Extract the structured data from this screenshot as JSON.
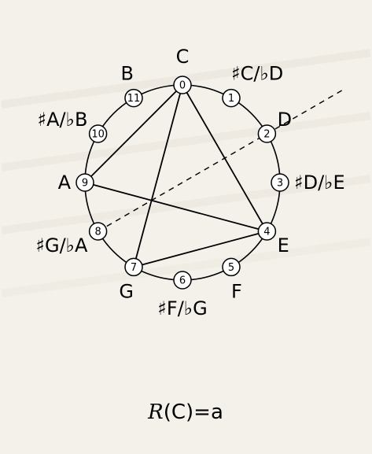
{
  "diagram": {
    "nodes": [
      {
        "index": "0",
        "label": "C"
      },
      {
        "index": "1",
        "label": "♯C/♭D"
      },
      {
        "index": "2",
        "label": "D"
      },
      {
        "index": "3",
        "label": "♯D/♭E"
      },
      {
        "index": "4",
        "label": "E"
      },
      {
        "index": "5",
        "label": "F"
      },
      {
        "index": "6",
        "label": "♯F/♭G"
      },
      {
        "index": "7",
        "label": "G"
      },
      {
        "index": "8",
        "label": "♯G/♭A"
      },
      {
        "index": "9",
        "label": "A"
      },
      {
        "index": "10",
        "label": "♯A/♭B"
      },
      {
        "index": "11",
        "label": "B"
      }
    ],
    "triangle": [
      "0",
      "4",
      "7"
    ],
    "chord_lines": [
      [
        "0",
        "4"
      ],
      [
        "0",
        "7"
      ],
      [
        "0",
        "9"
      ],
      [
        "9",
        "4"
      ],
      [
        "7",
        "4"
      ]
    ],
    "dashed_axis": [
      "8",
      "2"
    ]
  },
  "formula": {
    "func": "R",
    "open": "(",
    "arg": "C",
    "close": ")",
    "eq": "=",
    "result": "a"
  }
}
